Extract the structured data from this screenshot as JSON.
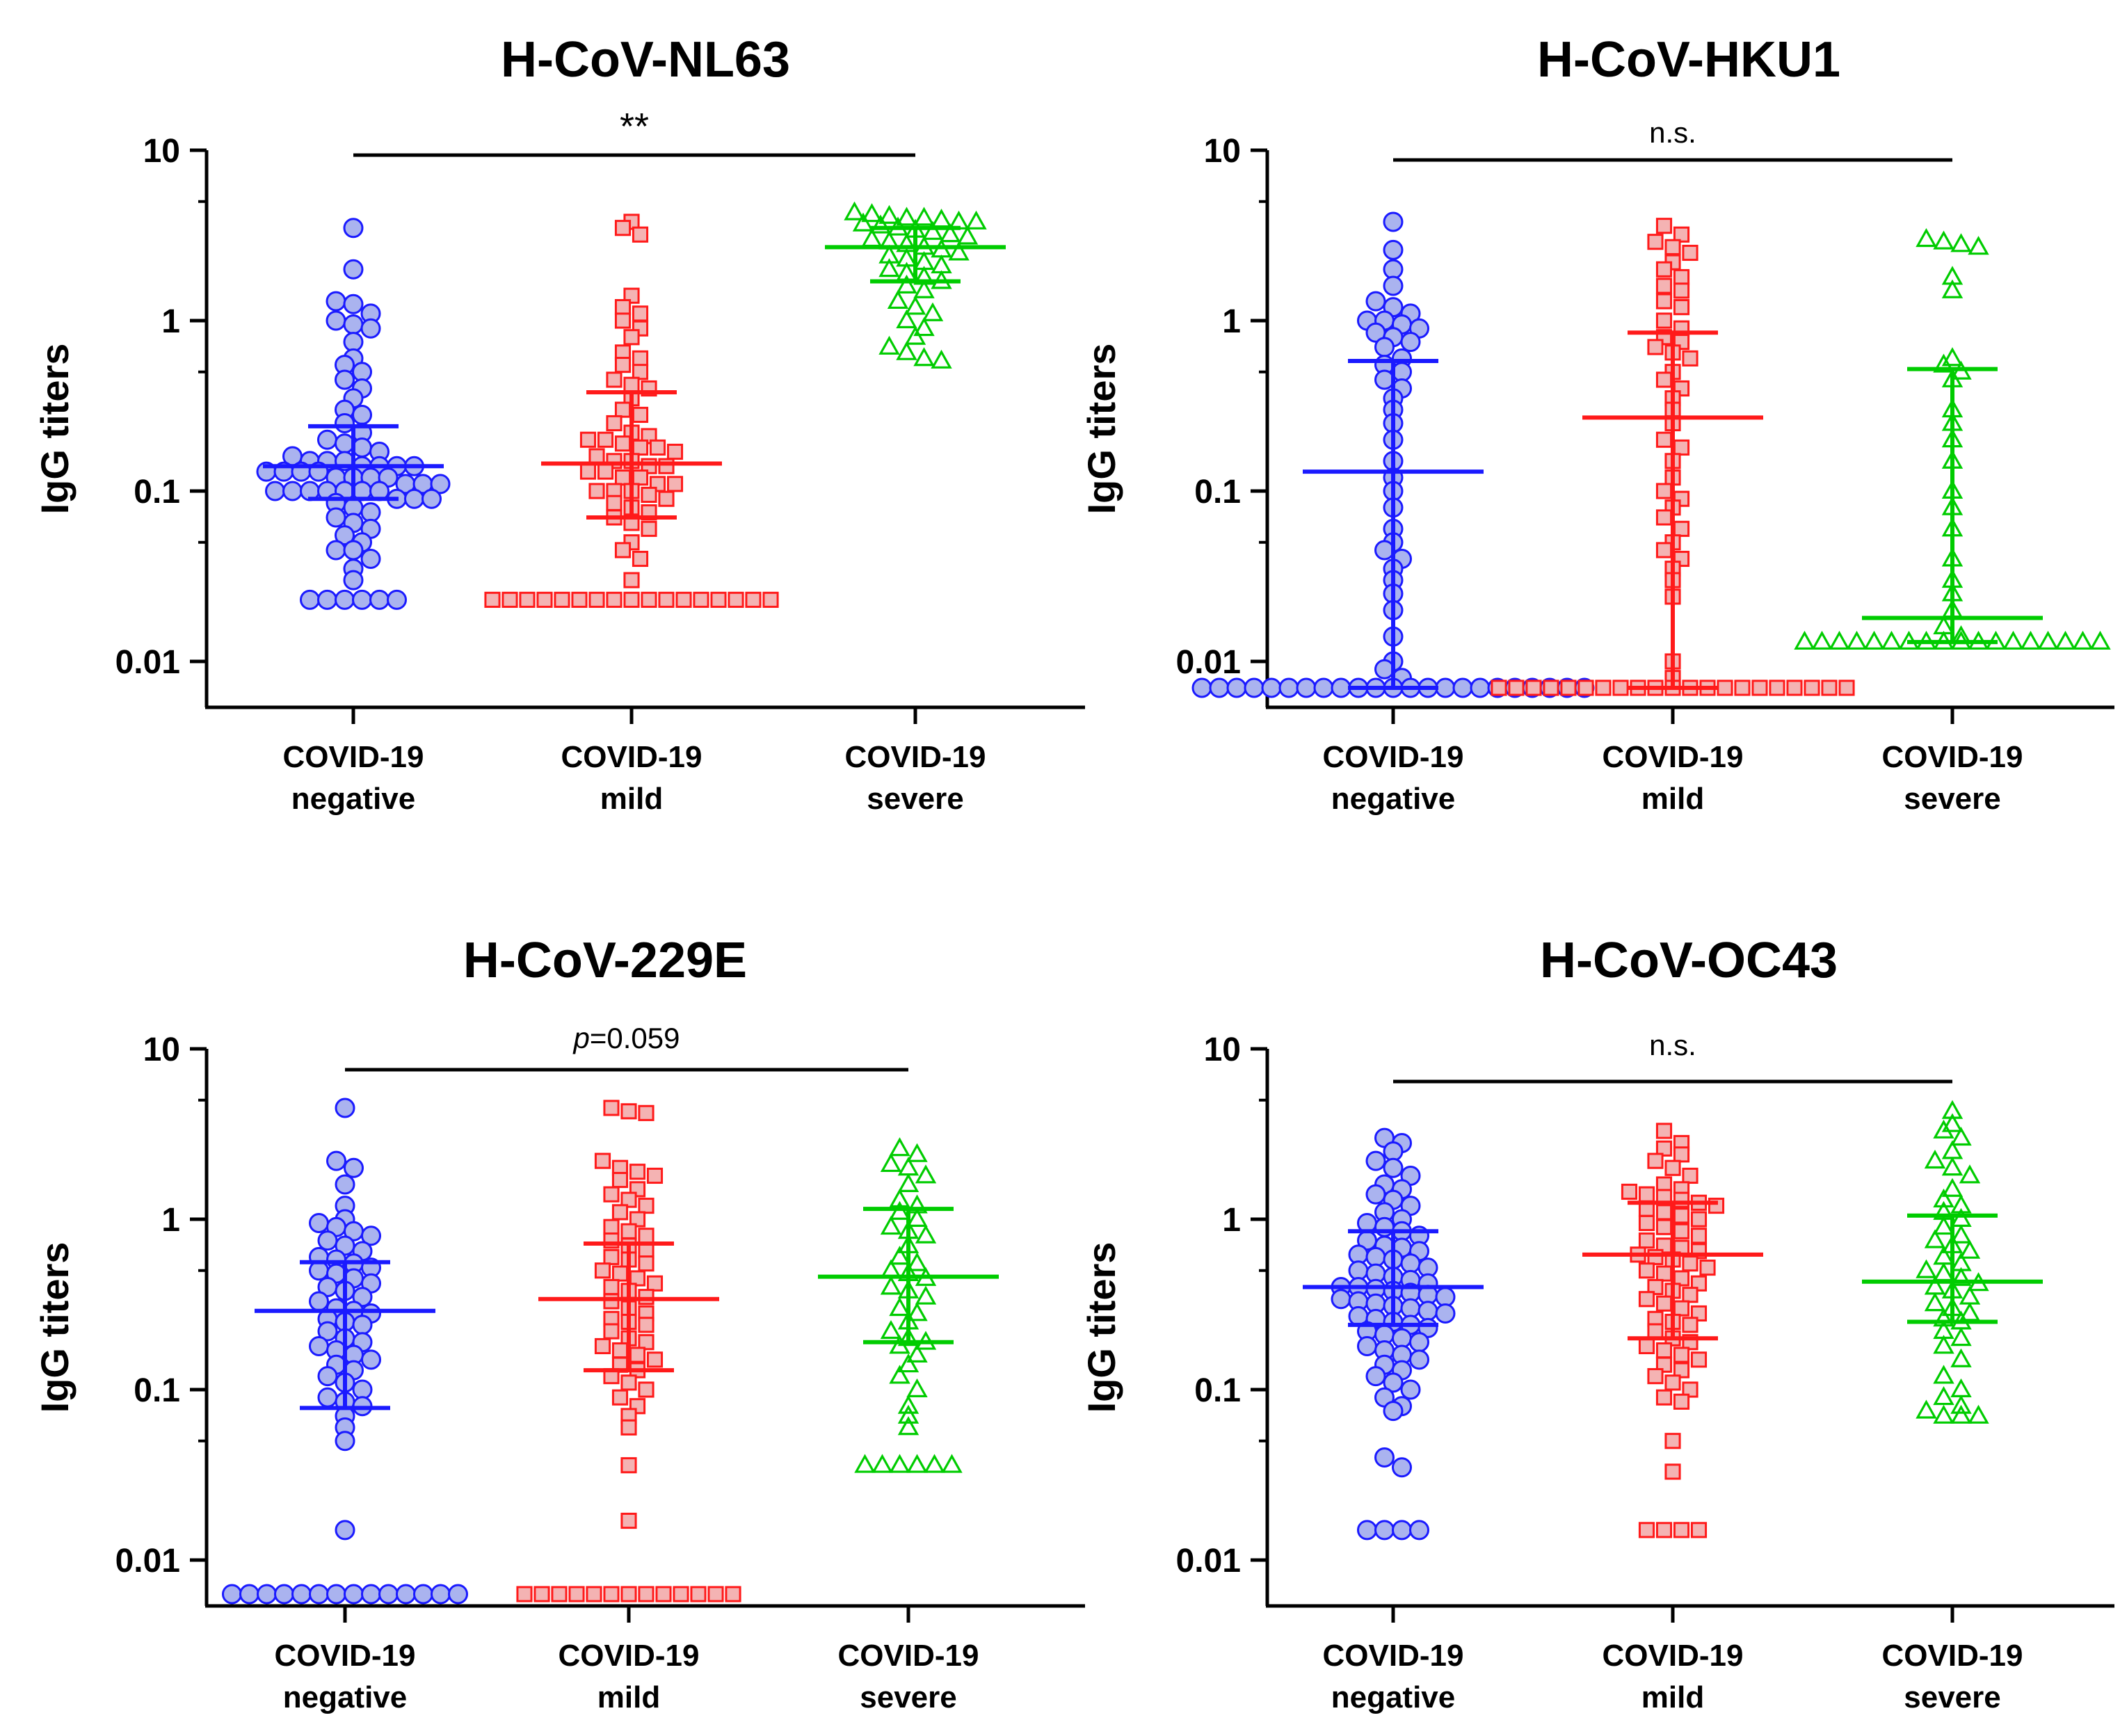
{
  "chart_data": [
    {
      "type": "scatter",
      "subtype": "dot-plot",
      "title": "H-CoV-NL63",
      "ylabel": "IgG titers",
      "yscale": "log",
      "ylim": [
        0.005,
        10
      ],
      "yticks": [
        "10",
        "1",
        "0.1",
        "0.01"
      ],
      "significance": {
        "text": "**",
        "italic_prefix": "",
        "from": 0,
        "to": 2
      },
      "groups": [
        {
          "line1": "COVID-19",
          "line2": "negative",
          "color": "#1a1aff",
          "fill": "#aab3ef",
          "marker": "circle",
          "median": 0.14,
          "q1": 0.09,
          "q3": 0.24,
          "values": [
            3.5,
            2.0,
            1.3,
            1.25,
            1.1,
            1.0,
            0.95,
            0.9,
            0.75,
            0.6,
            0.55,
            0.5,
            0.45,
            0.4,
            0.35,
            0.3,
            0.28,
            0.25,
            0.22,
            0.2,
            0.19,
            0.18,
            0.17,
            0.16,
            0.15,
            0.15,
            0.15,
            0.14,
            0.14,
            0.14,
            0.14,
            0.13,
            0.13,
            0.13,
            0.13,
            0.12,
            0.12,
            0.12,
            0.12,
            0.11,
            0.11,
            0.11,
            0.1,
            0.1,
            0.1,
            0.1,
            0.1,
            0.1,
            0.1,
            0.09,
            0.09,
            0.09,
            0.085,
            0.08,
            0.075,
            0.07,
            0.065,
            0.06,
            0.055,
            0.05,
            0.045,
            0.045,
            0.04,
            0.035,
            0.03,
            0.023,
            0.023,
            0.023,
            0.023,
            0.023,
            0.023
          ]
        },
        {
          "line1": "COVID-19",
          "line2": "mild",
          "color": "#ff1a1a",
          "fill": "#f4b3b3",
          "marker": "square",
          "median": 0.145,
          "q1": 0.07,
          "q3": 0.38,
          "values": [
            3.8,
            3.5,
            3.2,
            1.4,
            1.2,
            1.1,
            1.0,
            0.9,
            0.8,
            0.65,
            0.6,
            0.55,
            0.5,
            0.45,
            0.42,
            0.4,
            0.35,
            0.3,
            0.28,
            0.25,
            0.22,
            0.21,
            0.2,
            0.2,
            0.19,
            0.18,
            0.18,
            0.17,
            0.16,
            0.15,
            0.15,
            0.14,
            0.14,
            0.13,
            0.13,
            0.12,
            0.12,
            0.11,
            0.11,
            0.1,
            0.1,
            0.1,
            0.095,
            0.09,
            0.085,
            0.08,
            0.075,
            0.07,
            0.065,
            0.06,
            0.05,
            0.045,
            0.04,
            0.03,
            0.023,
            0.023,
            0.023,
            0.023,
            0.023,
            0.023,
            0.023,
            0.023,
            0.023,
            0.023,
            0.023,
            0.023,
            0.023,
            0.023,
            0.023,
            0.023,
            0.023
          ]
        },
        {
          "line1": "COVID-19",
          "line2": "severe",
          "color": "#00cc00",
          "fill": "none",
          "marker": "triangle",
          "median": 2.7,
          "q1": 1.7,
          "q3": 3.5,
          "values": [
            4.3,
            4.2,
            4.1,
            4.0,
            4.0,
            3.9,
            3.8,
            3.8,
            3.7,
            3.6,
            3.5,
            3.4,
            3.3,
            3.2,
            3.1,
            3.0,
            2.9,
            2.8,
            2.7,
            2.6,
            2.5,
            2.4,
            2.3,
            2.2,
            2.1,
            2.0,
            1.9,
            1.8,
            1.7,
            1.6,
            1.5,
            1.3,
            1.2,
            1.1,
            1.0,
            0.9,
            0.8,
            0.7,
            0.65,
            0.6,
            0.58
          ]
        }
      ]
    },
    {
      "type": "scatter",
      "subtype": "dot-plot",
      "title": "H-CoV-HKU1",
      "ylabel": "IgG titers",
      "yscale": "log",
      "ylim": [
        0.005,
        10
      ],
      "yticks": [
        "10",
        "1",
        "0.1",
        "0.01"
      ],
      "significance": {
        "text": "n.s.",
        "italic_prefix": "",
        "from": 0,
        "to": 2
      },
      "groups": [
        {
          "line1": "COVID-19",
          "line2": "negative",
          "color": "#1a1aff",
          "fill": "#aab3ef",
          "marker": "circle",
          "median": 0.13,
          "q1": 0.007,
          "q3": 0.58,
          "values": [
            3.8,
            2.6,
            2.0,
            1.6,
            1.3,
            1.2,
            1.1,
            1.0,
            1.0,
            0.95,
            0.9,
            0.85,
            0.8,
            0.75,
            0.7,
            0.6,
            0.55,
            0.5,
            0.45,
            0.4,
            0.35,
            0.3,
            0.25,
            0.2,
            0.15,
            0.12,
            0.1,
            0.08,
            0.06,
            0.05,
            0.045,
            0.04,
            0.035,
            0.03,
            0.025,
            0.02,
            0.014,
            0.01,
            0.009,
            0.008,
            0.007,
            0.007,
            0.007,
            0.007,
            0.007,
            0.007,
            0.007,
            0.007,
            0.007,
            0.007,
            0.007,
            0.007,
            0.007,
            0.007,
            0.007,
            0.007,
            0.007,
            0.007,
            0.007,
            0.007,
            0.007,
            0.007,
            0.007
          ]
        },
        {
          "line1": "COVID-19",
          "line2": "mild",
          "color": "#ff1a1a",
          "fill": "#f4b3b3",
          "marker": "square",
          "median": 0.27,
          "q1": 0.007,
          "q3": 0.85,
          "values": [
            3.6,
            3.2,
            2.9,
            2.7,
            2.5,
            2.2,
            2.0,
            1.8,
            1.6,
            1.5,
            1.3,
            1.2,
            1.0,
            0.9,
            0.8,
            0.75,
            0.7,
            0.65,
            0.6,
            0.5,
            0.45,
            0.4,
            0.35,
            0.3,
            0.25,
            0.2,
            0.18,
            0.15,
            0.12,
            0.1,
            0.09,
            0.08,
            0.07,
            0.06,
            0.05,
            0.045,
            0.04,
            0.035,
            0.03,
            0.024,
            0.01,
            0.008,
            0.007,
            0.007,
            0.007,
            0.007,
            0.007,
            0.007,
            0.007,
            0.007,
            0.007,
            0.007,
            0.007,
            0.007,
            0.007,
            0.007,
            0.007,
            0.007,
            0.007,
            0.007,
            0.007,
            0.007,
            0.007
          ]
        },
        {
          "line1": "COVID-19",
          "line2": "severe",
          "color": "#00cc00",
          "fill": "none",
          "marker": "triangle",
          "median": 0.018,
          "q1": 0.013,
          "q3": 0.52,
          "values": [
            3.0,
            2.9,
            2.8,
            2.7,
            1.8,
            1.5,
            0.6,
            0.55,
            0.5,
            0.45,
            0.3,
            0.25,
            0.2,
            0.15,
            0.1,
            0.08,
            0.06,
            0.04,
            0.03,
            0.025,
            0.02,
            0.016,
            0.014,
            0.013,
            0.013,
            0.013,
            0.013,
            0.013,
            0.013,
            0.013,
            0.013,
            0.013,
            0.013,
            0.013,
            0.013,
            0.013,
            0.013,
            0.013,
            0.013,
            0.013,
            0.013
          ]
        }
      ]
    },
    {
      "type": "scatter",
      "subtype": "dot-plot",
      "title": "H-CoV-229E",
      "ylabel": "IgG titers",
      "yscale": "log",
      "ylim": [
        0.005,
        10
      ],
      "yticks": [
        "10",
        "1",
        "0.1",
        "0.01"
      ],
      "significance": {
        "text": "=0.059",
        "italic_prefix": "p",
        "from": 0,
        "to": 2
      },
      "groups": [
        {
          "line1": "COVID-19",
          "line2": "negative",
          "color": "#1a1aff",
          "fill": "#aab3ef",
          "marker": "circle",
          "median": 0.29,
          "q1": 0.078,
          "q3": 0.56,
          "values": [
            4.5,
            2.2,
            2.0,
            1.6,
            1.2,
            1.0,
            0.95,
            0.9,
            0.85,
            0.8,
            0.75,
            0.7,
            0.65,
            0.6,
            0.58,
            0.55,
            0.52,
            0.5,
            0.48,
            0.45,
            0.42,
            0.4,
            0.38,
            0.35,
            0.33,
            0.3,
            0.29,
            0.28,
            0.26,
            0.25,
            0.24,
            0.22,
            0.2,
            0.19,
            0.18,
            0.17,
            0.16,
            0.15,
            0.14,
            0.13,
            0.12,
            0.11,
            0.1,
            0.09,
            0.085,
            0.08,
            0.07,
            0.06,
            0.05,
            0.015,
            0.006,
            0.006,
            0.006,
            0.006,
            0.006,
            0.006,
            0.006,
            0.006,
            0.006,
            0.006,
            0.006,
            0.006,
            0.006,
            0.006
          ]
        },
        {
          "line1": "COVID-19",
          "line2": "mild",
          "color": "#ff1a1a",
          "fill": "#f4b3b3",
          "marker": "square",
          "median": 0.34,
          "q1": 0.13,
          "q3": 0.72,
          "values": [
            4.5,
            4.3,
            4.2,
            2.2,
            2.0,
            1.9,
            1.8,
            1.7,
            1.5,
            1.4,
            1.3,
            1.2,
            1.1,
            1.0,
            0.9,
            0.85,
            0.8,
            0.75,
            0.7,
            0.65,
            0.6,
            0.58,
            0.55,
            0.5,
            0.48,
            0.45,
            0.42,
            0.4,
            0.38,
            0.35,
            0.33,
            0.3,
            0.28,
            0.26,
            0.25,
            0.24,
            0.22,
            0.2,
            0.19,
            0.18,
            0.17,
            0.16,
            0.15,
            0.14,
            0.13,
            0.12,
            0.11,
            0.1,
            0.09,
            0.08,
            0.07,
            0.06,
            0.036,
            0.017,
            0.006,
            0.006,
            0.006,
            0.006,
            0.006,
            0.006,
            0.006,
            0.006,
            0.006,
            0.006,
            0.006,
            0.006,
            0.006
          ]
        },
        {
          "line1": "COVID-19",
          "line2": "severe",
          "color": "#00cc00",
          "fill": "none",
          "marker": "triangle",
          "median": 0.46,
          "q1": 0.19,
          "q3": 1.15,
          "values": [
            2.6,
            2.4,
            2.1,
            2.0,
            1.8,
            1.6,
            1.3,
            1.2,
            1.1,
            1.0,
            0.9,
            0.85,
            0.8,
            0.7,
            0.6,
            0.55,
            0.5,
            0.48,
            0.45,
            0.4,
            0.38,
            0.35,
            0.3,
            0.28,
            0.25,
            0.22,
            0.2,
            0.19,
            0.18,
            0.16,
            0.14,
            0.12,
            0.1,
            0.08,
            0.07,
            0.06,
            0.036,
            0.036,
            0.036,
            0.036,
            0.036,
            0.036
          ]
        }
      ]
    },
    {
      "type": "scatter",
      "subtype": "dot-plot",
      "title": "H-CoV-OC43",
      "ylabel": "IgG titers",
      "yscale": "log",
      "ylim": [
        0.005,
        10
      ],
      "yticks": [
        "10",
        "1",
        "0.1",
        "0.01"
      ],
      "significance": {
        "text": "n.s.",
        "italic_prefix": "",
        "from": 0,
        "to": 2
      },
      "groups": [
        {
          "line1": "COVID-19",
          "line2": "negative",
          "color": "#1a1aff",
          "fill": "#aab3ef",
          "marker": "circle",
          "median": 0.4,
          "q1": 0.24,
          "q3": 0.85,
          "values": [
            3.0,
            2.8,
            2.5,
            2.2,
            2.0,
            1.8,
            1.6,
            1.5,
            1.4,
            1.3,
            1.2,
            1.1,
            1.0,
            0.95,
            0.9,
            0.85,
            0.8,
            0.75,
            0.7,
            0.68,
            0.65,
            0.62,
            0.6,
            0.58,
            0.55,
            0.52,
            0.5,
            0.48,
            0.46,
            0.44,
            0.42,
            0.4,
            0.4,
            0.39,
            0.38,
            0.37,
            0.36,
            0.35,
            0.34,
            0.33,
            0.32,
            0.31,
            0.3,
            0.29,
            0.28,
            0.27,
            0.26,
            0.25,
            0.24,
            0.23,
            0.22,
            0.21,
            0.2,
            0.19,
            0.18,
            0.17,
            0.16,
            0.15,
            0.14,
            0.13,
            0.12,
            0.11,
            0.1,
            0.09,
            0.08,
            0.075,
            0.04,
            0.035,
            0.015,
            0.015,
            0.015,
            0.015
          ]
        },
        {
          "line1": "COVID-19",
          "line2": "mild",
          "color": "#ff1a1a",
          "fill": "#f4b3b3",
          "marker": "square",
          "median": 0.62,
          "q1": 0.2,
          "q3": 1.25,
          "values": [
            3.3,
            2.8,
            2.6,
            2.4,
            2.2,
            2.0,
            1.8,
            1.6,
            1.5,
            1.45,
            1.4,
            1.35,
            1.3,
            1.25,
            1.2,
            1.15,
            1.1,
            1.05,
            1.0,
            0.95,
            0.9,
            0.85,
            0.8,
            0.75,
            0.7,
            0.68,
            0.65,
            0.62,
            0.6,
            0.58,
            0.55,
            0.52,
            0.5,
            0.48,
            0.45,
            0.42,
            0.4,
            0.38,
            0.36,
            0.34,
            0.32,
            0.3,
            0.28,
            0.26,
            0.25,
            0.24,
            0.22,
            0.2,
            0.19,
            0.18,
            0.17,
            0.16,
            0.15,
            0.14,
            0.13,
            0.12,
            0.11,
            0.1,
            0.09,
            0.085,
            0.05,
            0.033,
            0.015,
            0.015,
            0.015,
            0.015
          ]
        },
        {
          "line1": "COVID-19",
          "line2": "severe",
          "color": "#00cc00",
          "fill": "none",
          "marker": "triangle",
          "median": 0.43,
          "q1": 0.25,
          "q3": 1.05,
          "values": [
            4.3,
            3.6,
            3.3,
            3.0,
            2.5,
            2.2,
            2.0,
            1.8,
            1.5,
            1.3,
            1.2,
            1.1,
            1.0,
            0.9,
            0.8,
            0.75,
            0.7,
            0.65,
            0.6,
            0.55,
            0.5,
            0.48,
            0.45,
            0.42,
            0.4,
            0.38,
            0.35,
            0.32,
            0.3,
            0.28,
            0.26,
            0.25,
            0.22,
            0.2,
            0.18,
            0.15,
            0.12,
            0.1,
            0.09,
            0.08,
            0.075,
            0.07,
            0.07,
            0.07
          ]
        }
      ]
    }
  ]
}
